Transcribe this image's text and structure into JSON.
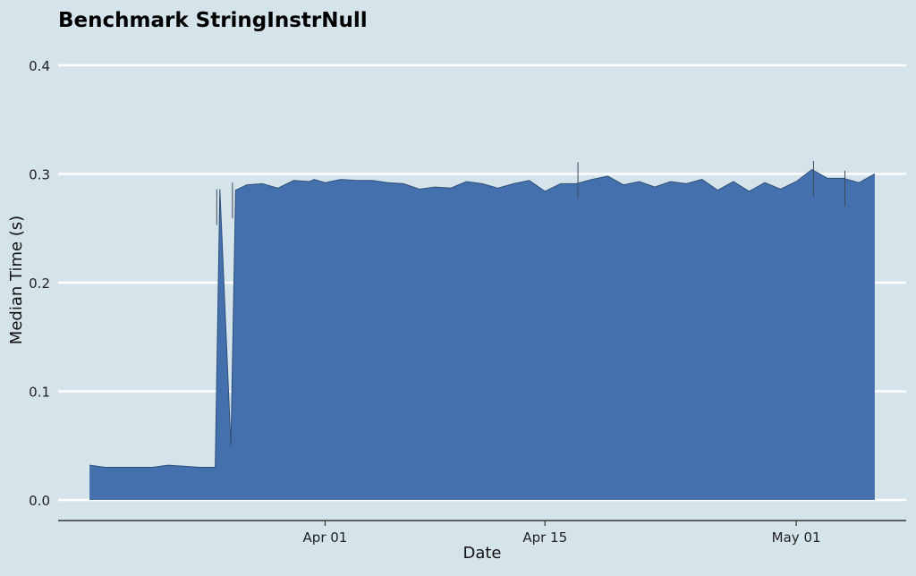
{
  "chart_data": {
    "type": "area",
    "title": "Benchmark StringInstrNull",
    "xlabel": "Date",
    "ylabel": "Median Time (s)",
    "ylim": [
      0,
      0.4
    ],
    "yticks": [
      0.0,
      0.1,
      0.2,
      0.3,
      0.4
    ],
    "ytick_labels": [
      "0.0",
      "0.1",
      "0.2",
      "0.3",
      "0.4"
    ],
    "xlim": [
      "2018-03-15",
      "2018-05-08"
    ],
    "xticks": [
      "2018-04-01",
      "2018-04-15",
      "2018-05-01"
    ],
    "xtick_labels": [
      "Apr 01",
      "Apr 15",
      "May 01"
    ],
    "grid": "horizontal",
    "colors": {
      "fill": "#4471ae",
      "edge": "#2f4f7a",
      "background": "#d5e4eb",
      "grid": "#ffffff",
      "axis": "#333333"
    },
    "series": [
      {
        "x": [
          "2018-03-17",
          "2018-03-18",
          "2018-03-19",
          "2018-03-20",
          "2018-03-21",
          "2018-03-22",
          "2018-03-23",
          "2018-03-24",
          "2018-03-25",
          "2018-03-25",
          "2018-03-26",
          "2018-03-26",
          "2018-03-27",
          "2018-03-28",
          "2018-03-29",
          "2018-03-30",
          "2018-03-31",
          "2018-03-31",
          "2018-04-01",
          "2018-04-02",
          "2018-04-03",
          "2018-04-04",
          "2018-04-05",
          "2018-04-06",
          "2018-04-07",
          "2018-04-08",
          "2018-04-09",
          "2018-04-10",
          "2018-04-11",
          "2018-04-12",
          "2018-04-13",
          "2018-04-14",
          "2018-04-15",
          "2018-04-16",
          "2018-04-17",
          "2018-04-18",
          "2018-04-19",
          "2018-04-20",
          "2018-04-21",
          "2018-04-22",
          "2018-04-23",
          "2018-04-24",
          "2018-04-25",
          "2018-04-26",
          "2018-04-27",
          "2018-04-28",
          "2018-04-29",
          "2018-04-30",
          "2018-05-01",
          "2018-05-02",
          "2018-05-03",
          "2018-05-04",
          "2018-05-05",
          "2018-05-06"
        ],
        "y": [
          0.032,
          0.03,
          0.03,
          0.03,
          0.03,
          0.032,
          0.031,
          0.03,
          0.03,
          0.286,
          0.05,
          0.285,
          0.29,
          0.291,
          0.287,
          0.294,
          0.293,
          0.295,
          0.292,
          0.295,
          0.294,
          0.294,
          0.292,
          0.291,
          0.286,
          0.288,
          0.287,
          0.293,
          0.291,
          0.287,
          0.291,
          0.294,
          0.284,
          0.291,
          0.291,
          0.295,
          0.298,
          0.29,
          0.293,
          0.288,
          0.293,
          0.291,
          0.295,
          0.285,
          0.293,
          0.284,
          0.292,
          0.286,
          0.293,
          0.304,
          0.296,
          0.296,
          0.292,
          0.3
        ],
        "spikes": [
          {
            "x": "2018-03-25",
            "y": 0.286
          },
          {
            "x": "2018-03-26",
            "y": 0.292
          },
          {
            "x": "2018-04-17",
            "y": 0.311
          },
          {
            "x": "2018-05-02",
            "y": 0.312
          },
          {
            "x": "2018-05-04",
            "y": 0.303
          }
        ]
      }
    ]
  }
}
